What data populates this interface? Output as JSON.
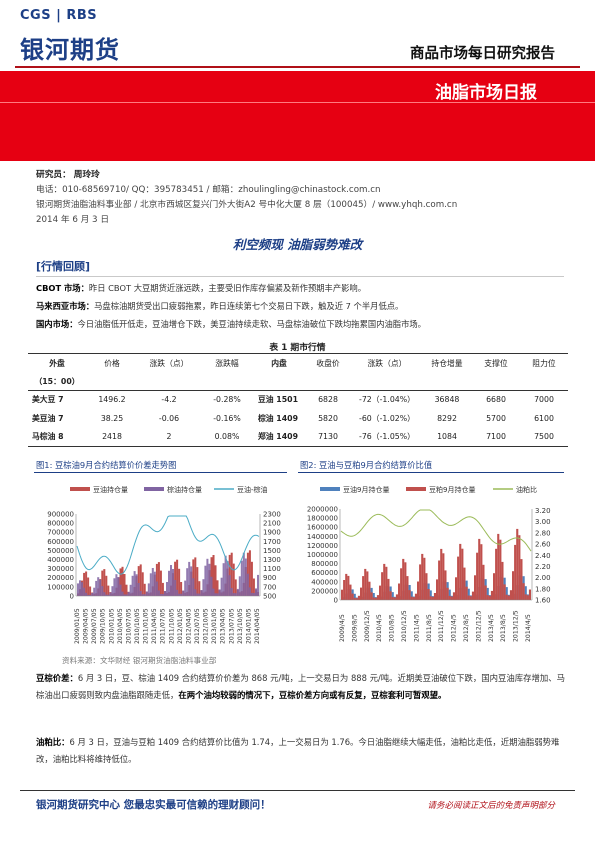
{
  "header": {
    "logo_top": "CGS | RBS",
    "logo_main": "银河期货",
    "report_type": "商品市场每日研究报告",
    "report_title": "油脂市场日报"
  },
  "meta": {
    "analyst": "研究员：  周玲玲",
    "contact": "电话：010-68569710/ QQ：395783451 / 邮箱：zhoulingling@chinastock.com.cn",
    "address": "银河期货油脂油料事业部 / 北京市西城区复兴门外大街A2 号中化大厦 8 层（100045）/ www.yhqh.com.cn",
    "date": "2014 年 6 月 3 日"
  },
  "main_title": "利空频现  油脂弱势难改",
  "review": {
    "heading": "[行情回顾]",
    "p1_label": "CBOT 市场：",
    "p1_text": "昨日 CBOT 大豆期货近涨远跌，主要受旧作库存偏紧及新作预期丰产影响。",
    "p2_label": "马来西亚市场：",
    "p2_text": "马盘棕油期货受出口疲弱拖累，昨日连续第七个交易日下跌，触及近 7 个半月低点。",
    "p3_label": "国内市场：",
    "p3_text": "今日油脂低开低走，豆油增仓下跌，美豆油持续走软、马盘棕油破位下跌均拖累国内油脂市场。"
  },
  "table": {
    "caption": "表 1   期市行情",
    "headers": [
      "外盘",
      "价格",
      "涨跌（点）",
      "涨跌幅",
      "内盘",
      "收盘价",
      "涨跌（点）",
      "持仓增量",
      "支撑位",
      "阻力位"
    ],
    "subheader": "（15：00）",
    "rows": [
      [
        "美大豆 7",
        "1496.2",
        "-4.2",
        "-0.28%",
        "豆油 1501",
        "6828",
        "-72（-1.04%）",
        "36848",
        "6680",
        "7000"
      ],
      [
        "美豆油 7",
        "38.25",
        "-0.06",
        "-0.16%",
        "棕油 1409",
        "5820",
        "-60（-1.02%）",
        "8292",
        "5700",
        "6100"
      ],
      [
        "马棕油 8",
        "2418",
        "2",
        "0.08%",
        "郑油 1409",
        "7130",
        "-76（-1.05%）",
        "1084",
        "7100",
        "7500"
      ]
    ]
  },
  "fig1": {
    "title": "图1: 豆棕油9月合约结算价价差走势图",
    "legend": [
      "豆油持仓量",
      "棕油持仓量",
      "豆油-棕油"
    ],
    "left_ticks": [
      "900000",
      "800000",
      "700000",
      "600000",
      "500000",
      "400000",
      "300000",
      "200000",
      "100000",
      "0"
    ],
    "right_ticks": [
      "2300",
      "2100",
      "1900",
      "1700",
      "1500",
      "1300",
      "1100",
      "900",
      "700",
      "500"
    ],
    "x_ticks": [
      "2009/01/05",
      "2009/04/05",
      "2009/07/05",
      "2009/10/05",
      "2010/01/05",
      "2010/04/05",
      "2010/07/05",
      "2010/10/05",
      "2011/01/05",
      "2011/04/05",
      "2011/07/05",
      "2011/10/05",
      "2012/01/05",
      "2012/04/05",
      "2012/07/05",
      "2012/10/05",
      "2013/01/05",
      "2013/04/05",
      "2013/07/05",
      "2013/10/05",
      "2014/01/05",
      "2014/04/05"
    ],
    "colors": {
      "soy_oi": "#c0504d",
      "palm_oi": "#8064a2",
      "spread": "#4bacc6"
    }
  },
  "fig2": {
    "title": "图2: 豆油与豆粕9月合约结算价比值",
    "legend": [
      "豆油9月持仓量",
      "豆粕9月持仓量",
      "油粕比"
    ],
    "left_ticks": [
      "2000000",
      "1800000",
      "1600000",
      "1400000",
      "1200000",
      "1000000",
      "800000",
      "600000",
      "400000",
      "200000",
      "0"
    ],
    "right_ticks": [
      "3.20",
      "3.00",
      "2.80",
      "2.60",
      "2.40",
      "2.20",
      "2.00",
      "1.80",
      "1.60"
    ],
    "x_ticks": [
      "2009/4/5",
      "2009/8/5",
      "2009/12/5",
      "2010/4/5",
      "2010/8/5",
      "2010/12/5",
      "2011/4/5",
      "2011/8/5",
      "2011/12/5",
      "2012/4/5",
      "2012/8/5",
      "2012/12/5",
      "2013/4/5",
      "2013/8/5",
      "2013/12/5",
      "2014/4/5"
    ],
    "colors": {
      "soyoil_oi": "#4f81bd",
      "meal_oi": "#c0504d",
      "ratio": "#9bbb59"
    }
  },
  "source": "资料来源：文华财经    银河期货油脂油料事业部",
  "analysis": {
    "spread_label": "豆棕价差：",
    "spread_text": "6 月 3 日，豆、棕油 1409 合约结算价价差为 868 元/吨，上一交易日为 888 元/吨。近期美豆油破位下跌，国内豆油库存增加、马棕油出口疲弱则致内盘油脂跟随走低，",
    "spread_bold": "在两个油均较弱的情况下，豆棕价差方向或有反复，豆棕套利可暂观望。",
    "ratio_label": "油粕比：",
    "ratio_text": "6 月 3 日，豆油与豆粕 1409 合约结算价比值为 1.74，上一交易日为 1.76。今日油脂继续大幅走低，油粕比走低，近期油脂弱势难改，油粕比料将维持低位。"
  },
  "footer": {
    "left": "银河期货研究中心   您最忠实最可信赖的理财顾问！",
    "right": "请务必阅读正文后的免责声明部分"
  }
}
